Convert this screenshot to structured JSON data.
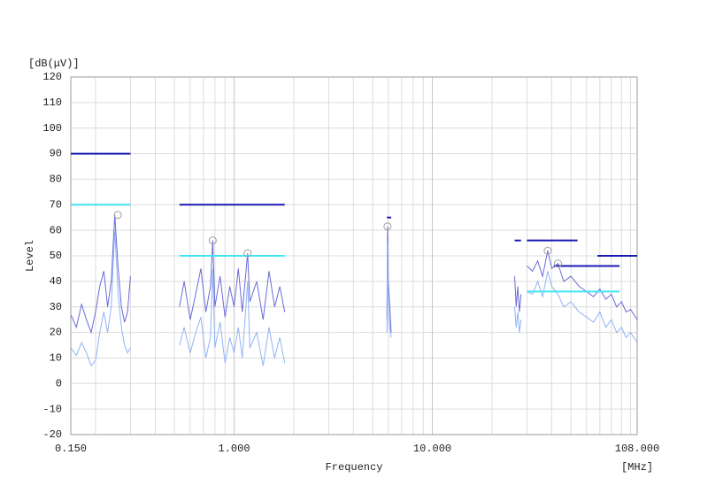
{
  "chart_data": {
    "type": "spectrum",
    "y_unit": "[dB(μV)]",
    "y_label": "Level",
    "x_label": "Frequency",
    "x_unit": "[MHz]",
    "log_x": true,
    "grid": true,
    "xlim": [
      0.15,
      108
    ],
    "ylim": [
      -20,
      120
    ],
    "xticks": [
      {
        "value": 0.15,
        "label": "0.150"
      },
      {
        "value": 1,
        "label": "1.000"
      },
      {
        "value": 10,
        "label": "10.000"
      },
      {
        "value": 108,
        "label": "108.000"
      }
    ],
    "xgrid_minor": [
      0.2,
      0.3,
      0.4,
      0.5,
      0.6,
      0.7,
      0.8,
      0.9,
      2,
      3,
      4,
      5,
      6,
      7,
      8,
      9,
      20,
      30,
      40,
      50,
      60,
      70,
      80,
      90,
      100
    ],
    "yticks": [
      -20,
      -10,
      0,
      10,
      20,
      30,
      40,
      50,
      60,
      70,
      80,
      90,
      100,
      110,
      120
    ],
    "x": [
      0.15,
      0.16,
      0.17,
      0.18,
      0.19,
      0.2,
      0.21,
      0.22,
      0.23,
      0.24,
      0.25,
      0.26,
      0.27,
      0.28,
      0.29,
      0.3,
      null,
      0.53,
      0.56,
      0.6,
      0.64,
      0.68,
      0.72,
      0.76,
      0.78,
      0.8,
      0.85,
      0.9,
      0.95,
      1.0,
      1.05,
      1.1,
      1.17,
      1.2,
      1.3,
      1.4,
      1.5,
      1.6,
      1.7,
      1.8,
      null,
      5.9,
      5.94,
      6.0,
      6.1,
      6.2,
      null,
      26,
      26.5,
      27,
      27.5,
      28,
      null,
      30,
      32,
      34,
      36,
      38.2,
      40,
      43,
      46,
      50,
      55,
      60,
      65,
      70,
      75,
      80,
      85,
      90,
      95,
      100,
      108
    ],
    "series": [
      {
        "color": "#6a6ad8",
        "values": [
          27,
          22,
          31,
          25,
          20,
          28,
          38,
          44,
          30,
          40,
          66,
          45,
          30,
          24,
          28,
          42,
          null,
          30,
          40,
          25,
          35,
          45,
          28,
          38,
          56,
          30,
          42,
          26,
          38,
          30,
          45,
          28,
          51,
          32,
          40,
          25,
          44,
          30,
          38,
          28,
          null,
          25,
          61.5,
          40,
          30,
          20,
          null,
          42,
          30,
          38,
          28,
          35,
          null,
          46,
          44,
          48,
          42,
          52,
          45,
          47,
          40,
          42,
          38,
          36,
          34,
          37,
          33,
          35,
          30,
          32,
          28,
          29,
          25
        ]
      },
      {
        "color": "#8fb4f4",
        "values": [
          14,
          11,
          16,
          12,
          7,
          9,
          20,
          28,
          20,
          30,
          60,
          35,
          22,
          15,
          12,
          14,
          null,
          15,
          22,
          12,
          20,
          26,
          10,
          18,
          45,
          14,
          24,
          8,
          18,
          12,
          22,
          10,
          40,
          14,
          20,
          7,
          22,
          10,
          18,
          8,
          null,
          20,
          55,
          30,
          22,
          18,
          null,
          30,
          22,
          28,
          20,
          25,
          null,
          36,
          35,
          40,
          34,
          44,
          38,
          35,
          30,
          32,
          28,
          26,
          24,
          28,
          22,
          25,
          20,
          22,
          18,
          20,
          16
        ]
      }
    ],
    "peak_markers": {
      "color": "#a0a0a0",
      "x": [
        0.259,
        0.78,
        1.17,
        5.94,
        38.2,
        43
      ],
      "values": [
        66,
        56,
        51,
        61.5,
        52,
        47
      ]
    },
    "limits": [
      {
        "color": "#1a1ab4",
        "x": [
          0.15,
          0.3
        ],
        "values": [
          90,
          90
        ]
      },
      {
        "color": "#1a1ab4",
        "x": [
          0.53,
          1.8
        ],
        "values": [
          70,
          70
        ]
      },
      {
        "color": "#1a1ab4",
        "x": [
          5.9,
          6.2
        ],
        "values": [
          65,
          65
        ]
      },
      {
        "color": "#1a1ab4",
        "x": [
          26,
          28
        ],
        "values": [
          56,
          56
        ]
      },
      {
        "color": "#1a1ab4",
        "x": [
          30,
          54
        ],
        "values": [
          56,
          56
        ]
      },
      {
        "color": "#1a1ab4",
        "x": [
          41,
          88
        ],
        "values": [
          46,
          46
        ]
      },
      {
        "color": "#1a1ab4",
        "x": [
          68,
          108
        ],
        "values": [
          50,
          50
        ]
      },
      {
        "color": "#40e4f4",
        "x": [
          0.15,
          0.3
        ],
        "values": [
          70,
          70
        ]
      },
      {
        "color": "#40e4f4",
        "x": [
          0.53,
          1.8
        ],
        "values": [
          50,
          50
        ]
      },
      {
        "color": "#40e4f4",
        "x": [
          30,
          88
        ],
        "values": [
          36,
          36
        ]
      }
    ]
  }
}
